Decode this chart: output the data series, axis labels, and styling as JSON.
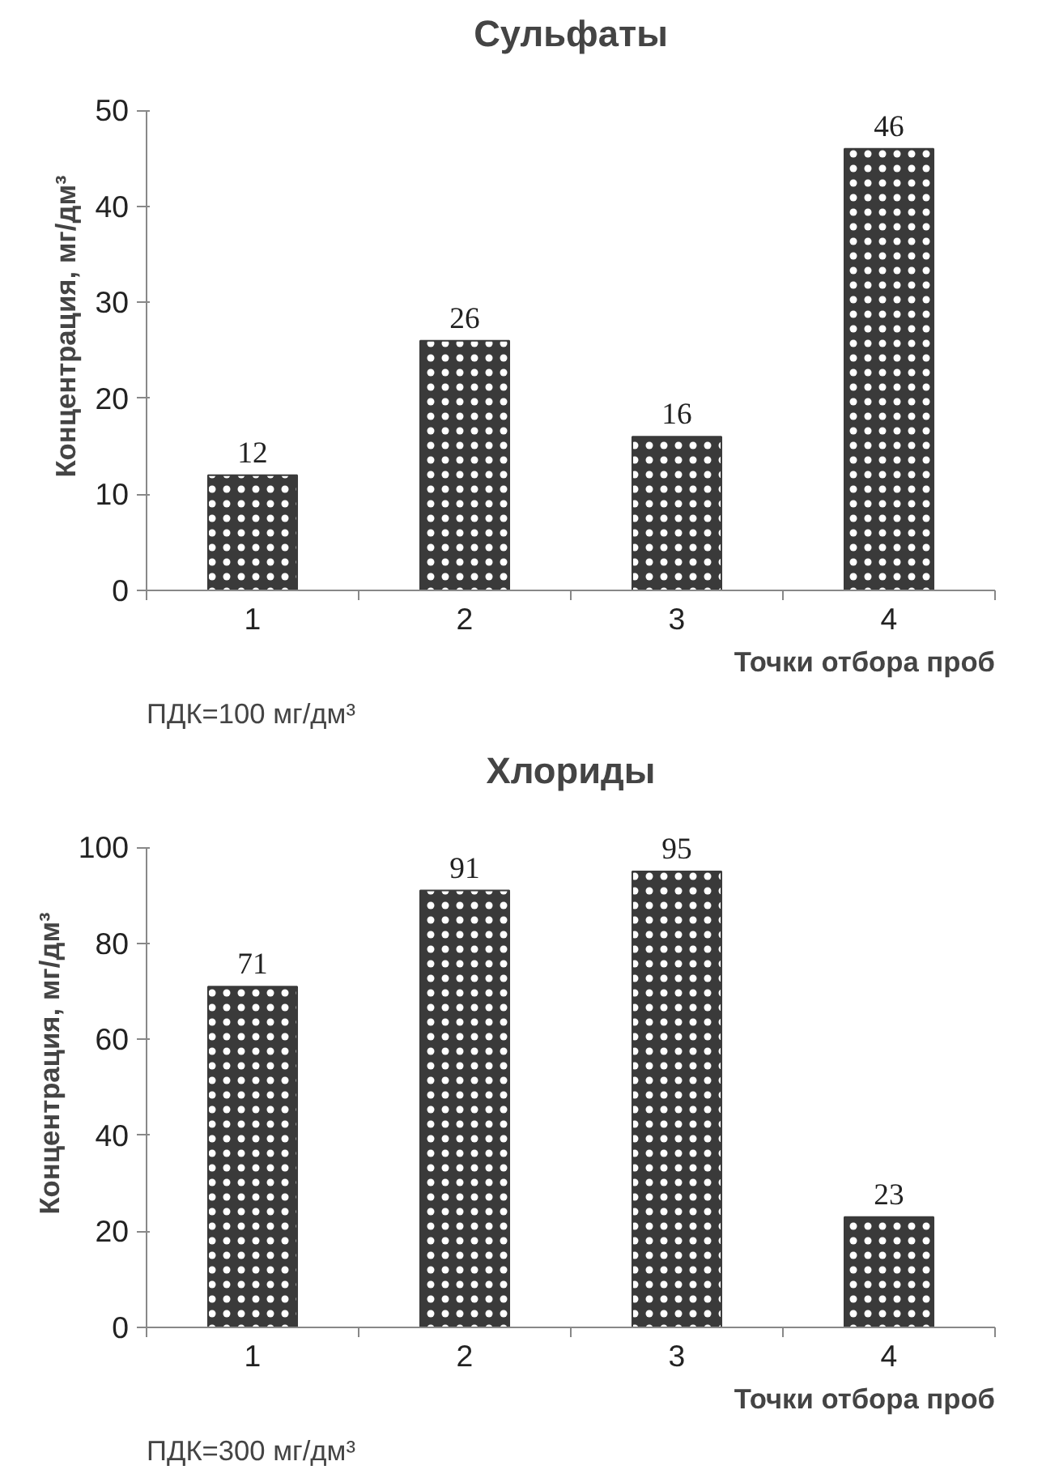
{
  "chart_data": [
    {
      "type": "bar",
      "title": "Сульфаты",
      "xlabel": "Точки отбора проб",
      "ylabel": "Концентрация, мг/дм³",
      "categories": [
        "1",
        "2",
        "3",
        "4"
      ],
      "values": [
        12,
        26,
        16,
        46
      ],
      "color": "#3a3a3a",
      "ylim": [
        0,
        50
      ],
      "yticks": [
        0,
        10,
        20,
        30,
        40,
        50
      ],
      "data_labels": true,
      "grid": false,
      "annotations": [
        "ПДК=100 мг/дм³"
      ]
    },
    {
      "type": "bar",
      "title": "Хлориды",
      "xlabel": "Точки отбора проб",
      "ylabel": "Концентрация, мг/дм³",
      "categories": [
        "1",
        "2",
        "3",
        "4"
      ],
      "values": [
        71,
        91,
        95,
        23
      ],
      "color": "#3a3a3a",
      "ylim": [
        0,
        100
      ],
      "yticks": [
        0,
        20,
        40,
        60,
        80,
        100
      ],
      "data_labels": true,
      "grid": false,
      "annotations": [
        "ПДК=300 мг/дм³"
      ]
    }
  ]
}
